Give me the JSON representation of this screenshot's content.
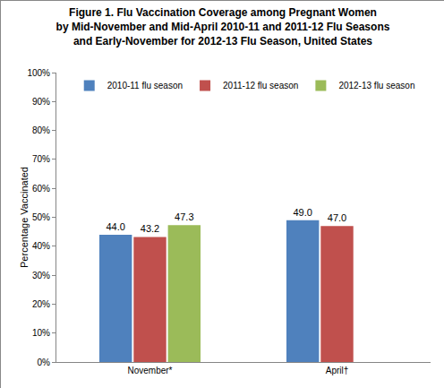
{
  "chart_data": {
    "type": "bar",
    "title": "Figure 1. Flu Vaccination Coverage among Pregnant Women\nby Mid-November and Mid-April 2010-11 and 2011-12 Flu Seasons\nand Early-November for 2012-13 Flu Season, United States",
    "y_label": "Percentage Vaccinated",
    "categories": [
      "November*",
      "April†"
    ],
    "series": [
      {
        "name": "2010-11 flu season",
        "color": "#4f81bd",
        "values": [
          44.0,
          49.0
        ],
        "value_labels": [
          "44.0",
          "49.0"
        ]
      },
      {
        "name": "2011-12 flu season",
        "color": "#c0504d",
        "values": [
          43.2,
          47.0
        ],
        "value_labels": [
          "43.2",
          "47.0"
        ]
      },
      {
        "name": "2012-13 flu season",
        "color": "#9bbb59",
        "values": [
          47.3,
          null
        ],
        "value_labels": [
          "47.3",
          null
        ]
      }
    ],
    "ylim": [
      0,
      100
    ],
    "yticks": [
      {
        "value": 0,
        "label": "0%"
      },
      {
        "value": 10,
        "label": "10%"
      },
      {
        "value": 20,
        "label": "20%"
      },
      {
        "value": 30,
        "label": "30%"
      },
      {
        "value": 40,
        "label": "40%"
      },
      {
        "value": 50,
        "label": "50%"
      },
      {
        "value": 60,
        "label": "60%"
      },
      {
        "value": 70,
        "label": "70%"
      },
      {
        "value": 80,
        "label": "80%"
      },
      {
        "value": 90,
        "label": "90%"
      },
      {
        "value": 100,
        "label": "100%"
      }
    ],
    "grid": false,
    "legend": "top",
    "data_labels": true
  }
}
